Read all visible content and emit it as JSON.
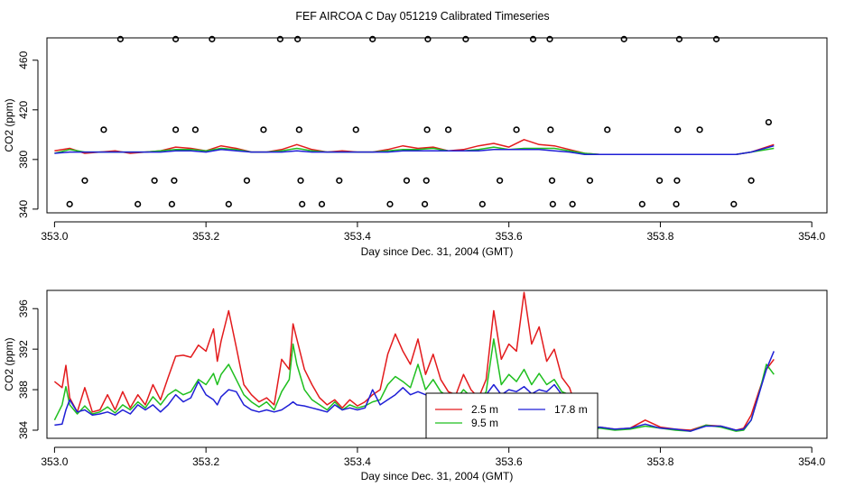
{
  "title": "FEF AIRCOA C  Day 051219  Calibrated Timeseries",
  "chart_data": [
    {
      "type": "line",
      "panel": "top",
      "xlabel": "Day since Dec. 31, 2004 (GMT)",
      "ylabel": "CO2 (ppm)",
      "xlim": [
        352.99,
        354.02
      ],
      "ylim": [
        337,
        478
      ],
      "xticks": [
        353.0,
        353.2,
        353.4,
        353.6,
        353.8,
        354.0
      ],
      "xtick_labels": [
        "353.0",
        "353.2",
        "353.4",
        "353.6",
        "353.8",
        "354.0"
      ],
      "yticks": [
        340,
        380,
        420,
        460
      ],
      "ytick_labels": [
        "340",
        "380",
        "420",
        "460"
      ],
      "colors": {
        "red": "#e31a1c",
        "green": "#1fbf1f",
        "blue": "#1f1fd6"
      },
      "series": [
        {
          "name": "2.5 m",
          "color": "red",
          "x": [
            353.0,
            353.02,
            353.04,
            353.06,
            353.08,
            353.1,
            353.12,
            353.14,
            353.16,
            353.18,
            353.2,
            353.22,
            353.24,
            353.26,
            353.28,
            353.3,
            353.32,
            353.34,
            353.36,
            353.38,
            353.4,
            353.42,
            353.44,
            353.46,
            353.48,
            353.5,
            353.52,
            353.54,
            353.56,
            353.58,
            353.6,
            353.62,
            353.64,
            353.66,
            353.68,
            353.7,
            353.72,
            353.75,
            353.8,
            353.85,
            353.9,
            353.92,
            353.95
          ],
          "y": [
            387,
            389,
            385,
            386,
            387,
            385,
            386,
            387,
            390,
            389,
            387,
            391,
            389,
            386,
            386,
            388,
            392,
            388,
            386,
            387,
            386,
            386,
            388,
            391,
            389,
            390,
            387,
            388,
            391,
            393,
            390,
            396,
            392,
            391,
            388,
            385,
            384,
            384,
            384,
            384,
            384,
            386,
            392
          ]
        },
        {
          "name": "9.5 m",
          "color": "green",
          "x": [
            353.0,
            353.02,
            353.04,
            353.06,
            353.08,
            353.1,
            353.12,
            353.14,
            353.16,
            353.18,
            353.2,
            353.22,
            353.24,
            353.26,
            353.28,
            353.3,
            353.32,
            353.34,
            353.36,
            353.38,
            353.4,
            353.42,
            353.44,
            353.46,
            353.48,
            353.5,
            353.52,
            353.54,
            353.56,
            353.58,
            353.6,
            353.62,
            353.64,
            353.66,
            353.68,
            353.7,
            353.72,
            353.75,
            353.8,
            353.85,
            353.9,
            353.92,
            353.95
          ],
          "y": [
            385,
            388,
            386,
            386,
            386,
            386,
            386,
            387,
            388,
            388,
            387,
            389,
            388,
            386,
            386,
            387,
            389,
            387,
            386,
            386,
            386,
            386,
            387,
            388,
            388,
            389,
            387,
            387,
            388,
            390,
            388,
            389,
            389,
            389,
            387,
            385,
            384,
            384,
            384,
            384,
            384,
            386,
            389
          ]
        },
        {
          "name": "17.8 m",
          "color": "blue",
          "x": [
            353.0,
            353.02,
            353.04,
            353.06,
            353.08,
            353.1,
            353.12,
            353.14,
            353.16,
            353.18,
            353.2,
            353.22,
            353.24,
            353.26,
            353.28,
            353.3,
            353.32,
            353.34,
            353.36,
            353.38,
            353.4,
            353.42,
            353.44,
            353.46,
            353.48,
            353.5,
            353.52,
            353.54,
            353.56,
            353.58,
            353.6,
            353.62,
            353.64,
            353.66,
            353.68,
            353.7,
            353.72,
            353.75,
            353.8,
            353.85,
            353.9,
            353.92,
            353.95
          ],
          "y": [
            385,
            386,
            386,
            386,
            386,
            386,
            386,
            386,
            387,
            387,
            386,
            388,
            387,
            386,
            386,
            386,
            387,
            386,
            386,
            386,
            386,
            386,
            386,
            387,
            387,
            387,
            387,
            387,
            387,
            388,
            388,
            388,
            388,
            387,
            386,
            384,
            384,
            384,
            384,
            384,
            384,
            386,
            391
          ]
        }
      ],
      "outliers": {
        "x": [
          353.02,
          353.04,
          353.065,
          353.087,
          353.11,
          353.132,
          353.155,
          353.158,
          353.16,
          353.16,
          353.186,
          353.208,
          353.23,
          353.254,
          353.276,
          353.298,
          353.321,
          353.323,
          353.325,
          353.327,
          353.353,
          353.376,
          353.398,
          353.42,
          353.443,
          353.465,
          353.489,
          353.491,
          353.492,
          353.493,
          353.52,
          353.543,
          353.565,
          353.588,
          353.61,
          353.632,
          353.654,
          353.655,
          353.657,
          353.658,
          353.684,
          353.707,
          353.73,
          353.752,
          353.776,
          353.799,
          353.821,
          353.822,
          353.823,
          353.825,
          353.852,
          353.874,
          353.897,
          353.92,
          353.943
        ],
        "y": [
          344,
          363,
          404,
          477,
          344,
          363,
          344,
          363,
          404,
          477,
          404,
          477,
          344,
          363,
          404,
          477,
          477,
          404,
          363,
          344,
          344,
          363,
          404,
          477,
          344,
          363,
          344,
          363,
          404,
          477,
          404,
          477,
          344,
          363,
          404,
          477,
          477,
          404,
          363,
          344,
          344,
          363,
          404,
          477,
          344,
          363,
          344,
          363,
          404,
          477,
          404,
          477,
          344,
          363,
          410
        ]
      }
    },
    {
      "type": "line",
      "panel": "bottom",
      "xlabel": "Day since Dec. 31, 2004 (GMT)",
      "ylabel": "CO2 (ppm)",
      "xlim": [
        352.99,
        354.02
      ],
      "ylim": [
        383.2,
        397.8
      ],
      "xticks": [
        353.0,
        353.2,
        353.4,
        353.6,
        353.8,
        354.0
      ],
      "xtick_labels": [
        "353.0",
        "353.2",
        "353.4",
        "353.6",
        "353.8",
        "354.0"
      ],
      "yticks": [
        384,
        388,
        392,
        396
      ],
      "ytick_labels": [
        "384",
        "388",
        "392",
        "396"
      ],
      "legend": {
        "placement": "lower-center",
        "entries": [
          "2.5 m",
          "9.5 m",
          "17.8 m"
        ]
      },
      "colors": {
        "red": "#e31a1c",
        "green": "#1fbf1f",
        "blue": "#1f1fd6"
      },
      "series": [
        {
          "name": "2.5 m",
          "color": "red",
          "x": [
            353.0,
            353.01,
            353.015,
            353.02,
            353.03,
            353.04,
            353.05,
            353.06,
            353.07,
            353.08,
            353.09,
            353.1,
            353.11,
            353.12,
            353.13,
            353.14,
            353.15,
            353.16,
            353.17,
            353.18,
            353.19,
            353.2,
            353.21,
            353.215,
            353.22,
            353.23,
            353.24,
            353.25,
            353.26,
            353.27,
            353.28,
            353.29,
            353.3,
            353.31,
            353.315,
            353.32,
            353.33,
            353.34,
            353.35,
            353.36,
            353.37,
            353.38,
            353.39,
            353.4,
            353.41,
            353.42,
            353.43,
            353.44,
            353.45,
            353.46,
            353.47,
            353.48,
            353.49,
            353.5,
            353.51,
            353.52,
            353.53,
            353.54,
            353.55,
            353.56,
            353.57,
            353.58,
            353.59,
            353.6,
            353.61,
            353.62,
            353.63,
            353.64,
            353.65,
            353.66,
            353.67,
            353.68,
            353.69,
            353.7,
            353.71,
            353.72,
            353.74,
            353.76,
            353.78,
            353.8,
            353.82,
            353.84,
            353.86,
            353.88,
            353.9,
            353.91,
            353.92,
            353.93,
            353.94,
            353.95
          ],
          "y": [
            388.8,
            388.2,
            390.4,
            387.2,
            385.8,
            388.2,
            385.8,
            386.0,
            387.5,
            386.0,
            387.8,
            386.2,
            387.5,
            386.5,
            388.5,
            387.0,
            389.2,
            391.3,
            391.4,
            391.2,
            392.4,
            391.8,
            394.0,
            390.8,
            392.8,
            395.8,
            392.2,
            388.5,
            387.5,
            386.8,
            387.2,
            386.5,
            391.0,
            390.0,
            394.5,
            393.0,
            390.0,
            388.5,
            387.2,
            386.5,
            387.0,
            386.2,
            387.0,
            386.4,
            386.8,
            387.5,
            388.0,
            391.5,
            393.5,
            391.8,
            390.5,
            393.0,
            389.5,
            391.5,
            389.0,
            387.8,
            387.5,
            389.5,
            388.0,
            387.2,
            389.0,
            395.8,
            391.0,
            392.5,
            391.8,
            397.6,
            392.5,
            394.2,
            390.8,
            392.0,
            389.2,
            388.2,
            386.0,
            384.6,
            384.2,
            384.3,
            384.1,
            384.2,
            385.0,
            384.3,
            384.1,
            384.0,
            384.5,
            384.4,
            384.0,
            384.2,
            385.5,
            387.8,
            390.0,
            391.0
          ]
        },
        {
          "name": "9.5 m",
          "color": "green",
          "x": [
            353.0,
            353.01,
            353.015,
            353.02,
            353.03,
            353.04,
            353.05,
            353.06,
            353.07,
            353.08,
            353.09,
            353.1,
            353.11,
            353.12,
            353.13,
            353.14,
            353.15,
            353.16,
            353.17,
            353.18,
            353.19,
            353.2,
            353.21,
            353.215,
            353.22,
            353.23,
            353.24,
            353.25,
            353.26,
            353.27,
            353.28,
            353.29,
            353.3,
            353.31,
            353.315,
            353.32,
            353.33,
            353.34,
            353.35,
            353.36,
            353.37,
            353.38,
            353.39,
            353.4,
            353.41,
            353.42,
            353.43,
            353.44,
            353.45,
            353.46,
            353.47,
            353.48,
            353.49,
            353.5,
            353.51,
            353.52,
            353.53,
            353.54,
            353.55,
            353.56,
            353.57,
            353.58,
            353.59,
            353.6,
            353.61,
            353.62,
            353.63,
            353.64,
            353.65,
            353.66,
            353.67,
            353.68,
            353.69,
            353.7,
            353.71,
            353.72,
            353.74,
            353.76,
            353.78,
            353.8,
            353.82,
            353.84,
            353.86,
            353.88,
            353.9,
            353.91,
            353.92,
            353.93,
            353.94,
            353.95
          ],
          "y": [
            385.0,
            386.5,
            388.3,
            386.5,
            385.6,
            386.4,
            385.6,
            385.8,
            386.3,
            385.7,
            386.5,
            386.0,
            386.8,
            386.2,
            387.3,
            386.5,
            387.5,
            388.0,
            387.5,
            387.8,
            389.0,
            388.5,
            389.6,
            388.5,
            389.5,
            390.5,
            389.0,
            387.5,
            386.8,
            386.3,
            386.8,
            386.0,
            387.8,
            389.0,
            392.5,
            390.5,
            388.0,
            387.0,
            386.5,
            386.0,
            386.8,
            386.0,
            386.5,
            386.2,
            386.4,
            386.8,
            387.0,
            388.5,
            389.3,
            388.8,
            388.2,
            390.5,
            388.0,
            389.0,
            387.8,
            387.3,
            387.0,
            388.0,
            387.3,
            386.8,
            387.8,
            393.0,
            388.5,
            389.5,
            388.8,
            390.0,
            388.5,
            389.6,
            388.5,
            389.0,
            387.8,
            387.5,
            385.8,
            384.4,
            384.1,
            384.2,
            384.0,
            384.1,
            384.4,
            384.2,
            384.0,
            383.9,
            384.5,
            384.3,
            383.9,
            384.0,
            385.0,
            387.5,
            390.5,
            389.5
          ]
        },
        {
          "name": "17.8 m",
          "color": "blue",
          "x": [
            353.0,
            353.01,
            353.015,
            353.02,
            353.03,
            353.04,
            353.05,
            353.06,
            353.07,
            353.08,
            353.09,
            353.1,
            353.11,
            353.12,
            353.13,
            353.14,
            353.15,
            353.16,
            353.17,
            353.18,
            353.19,
            353.2,
            353.21,
            353.215,
            353.22,
            353.23,
            353.24,
            353.25,
            353.26,
            353.27,
            353.28,
            353.29,
            353.3,
            353.31,
            353.315,
            353.32,
            353.33,
            353.34,
            353.35,
            353.36,
            353.37,
            353.38,
            353.39,
            353.4,
            353.41,
            353.42,
            353.43,
            353.44,
            353.45,
            353.46,
            353.47,
            353.48,
            353.49,
            353.5,
            353.51,
            353.52,
            353.53,
            353.54,
            353.55,
            353.56,
            353.57,
            353.58,
            353.59,
            353.6,
            353.61,
            353.62,
            353.63,
            353.64,
            353.65,
            353.66,
            353.67,
            353.68,
            353.69,
            353.7,
            353.71,
            353.72,
            353.74,
            353.76,
            353.78,
            353.8,
            353.82,
            353.84,
            353.86,
            353.88,
            353.9,
            353.91,
            353.92,
            353.93,
            353.94,
            353.95
          ],
          "y": [
            384.5,
            384.6,
            386.0,
            387.0,
            385.8,
            386.0,
            385.5,
            385.6,
            385.8,
            385.5,
            386.0,
            385.6,
            386.5,
            386.0,
            386.5,
            385.8,
            386.5,
            387.5,
            386.8,
            387.2,
            388.8,
            387.5,
            387.0,
            386.5,
            387.3,
            388.0,
            387.8,
            386.5,
            386.0,
            385.8,
            386.0,
            385.8,
            386.0,
            386.5,
            386.8,
            386.5,
            386.4,
            386.2,
            386.0,
            385.8,
            386.5,
            386.0,
            386.2,
            386.0,
            386.2,
            388.0,
            386.5,
            387.0,
            387.5,
            388.2,
            387.5,
            387.8,
            387.5,
            387.6,
            387.2,
            387.3,
            387.0,
            387.5,
            387.2,
            387.0,
            387.5,
            388.5,
            387.5,
            388.0,
            387.8,
            388.3,
            387.6,
            388.0,
            387.8,
            388.5,
            387.5,
            387.0,
            385.5,
            384.3,
            384.2,
            384.3,
            384.1,
            384.2,
            384.6,
            384.2,
            384.1,
            383.9,
            384.4,
            384.4,
            384.0,
            384.1,
            385.0,
            387.5,
            390.0,
            391.8
          ]
        }
      ]
    }
  ]
}
